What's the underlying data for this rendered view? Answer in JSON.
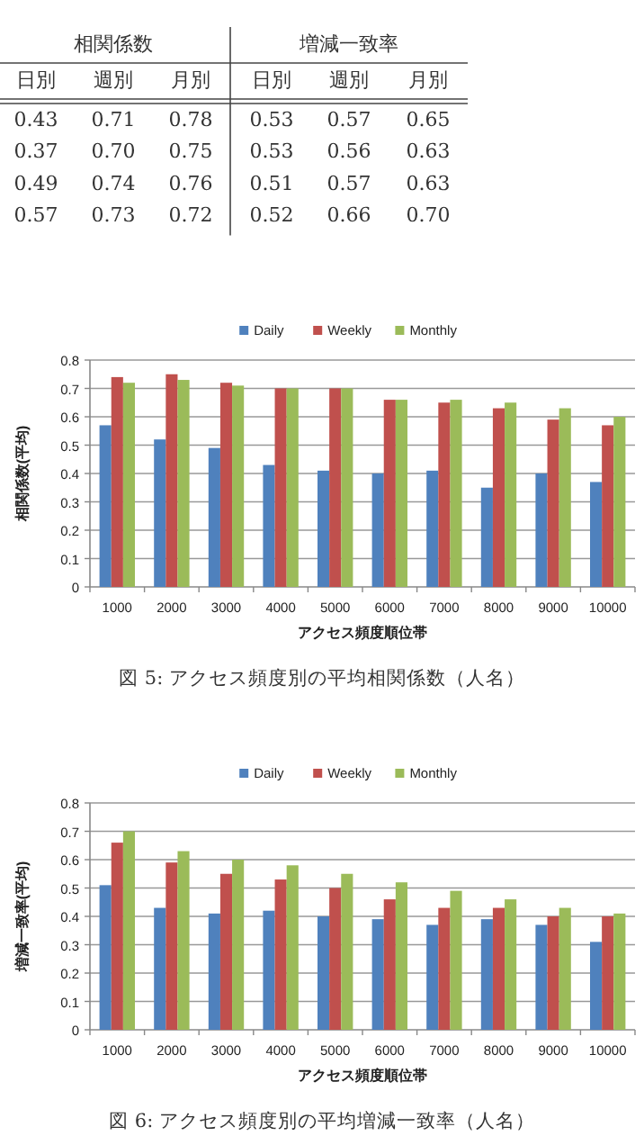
{
  "chart_data": [
    {
      "type": "other",
      "annotations": [
        "相関係数",
        "増減一致率",
        "日別",
        "週別",
        "月別",
        "日別",
        "週別",
        "月別",
        "0.43",
        "0.71",
        "0.78",
        "0.53",
        "0.57",
        "0.65",
        "0.37",
        "0.70",
        "0.75",
        "0.53",
        "0.56",
        "0.63",
        "0.49",
        "0.74",
        "0.76",
        "0.51",
        "0.57",
        "0.63",
        "0.57",
        "0.73",
        "0.72",
        "0.52",
        "0.66",
        "0.70"
      ]
    },
    {
      "type": "bar",
      "categories": [
        "1000",
        "2000",
        "3000",
        "4000",
        "5000",
        "6000",
        "7000",
        "8000",
        "9000",
        "10000"
      ],
      "series": [
        {
          "name": "Daily",
          "color": "#4f81bd",
          "values": [
            0.57,
            0.52,
            0.49,
            0.43,
            0.41,
            0.4,
            0.41,
            0.35,
            0.4,
            0.37
          ]
        },
        {
          "name": "Weekly",
          "color": "#c0504d",
          "values": [
            0.74,
            0.75,
            0.72,
            0.7,
            0.7,
            0.66,
            0.65,
            0.63,
            0.59,
            0.57
          ]
        },
        {
          "name": "Monthly",
          "color": "#9bbb59",
          "values": [
            0.72,
            0.73,
            0.71,
            0.7,
            0.7,
            0.66,
            0.66,
            0.65,
            0.63,
            0.6
          ]
        }
      ],
      "ylim": [
        0,
        0.8
      ],
      "yticks": [
        0,
        0.1,
        0.2,
        0.3,
        0.4,
        0.5,
        0.6,
        0.7,
        0.8
      ],
      "grid": "y",
      "legend": "top",
      "xlabel": "アクセス頻度順位帯",
      "ylabel": "相関係数(平均)",
      "annotations": [
        "図 5: アクセス頻度別の平均相関係数（人名）"
      ]
    },
    {
      "type": "bar",
      "categories": [
        "1000",
        "2000",
        "3000",
        "4000",
        "5000",
        "6000",
        "7000",
        "8000",
        "9000",
        "10000"
      ],
      "series": [
        {
          "name": "Daily",
          "color": "#4f81bd",
          "values": [
            0.51,
            0.43,
            0.41,
            0.42,
            0.4,
            0.39,
            0.37,
            0.39,
            0.37,
            0.31
          ]
        },
        {
          "name": "Weekly",
          "color": "#c0504d",
          "values": [
            0.66,
            0.59,
            0.55,
            0.53,
            0.5,
            0.46,
            0.43,
            0.43,
            0.4,
            0.4
          ]
        },
        {
          "name": "Monthly",
          "color": "#9bbb59",
          "values": [
            0.7,
            0.63,
            0.6,
            0.58,
            0.55,
            0.52,
            0.49,
            0.46,
            0.43,
            0.41
          ]
        }
      ],
      "ylim": [
        0,
        0.8
      ],
      "yticks": [
        0,
        0.1,
        0.2,
        0.3,
        0.4,
        0.5,
        0.6,
        0.7,
        0.8
      ],
      "grid": "y",
      "legend": "top",
      "xlabel": "アクセス頻度順位帯",
      "ylabel": "増減一致率(平均)",
      "annotations": [
        "図 6: アクセス頻度別の平均増減一致率（人名）"
      ]
    }
  ]
}
